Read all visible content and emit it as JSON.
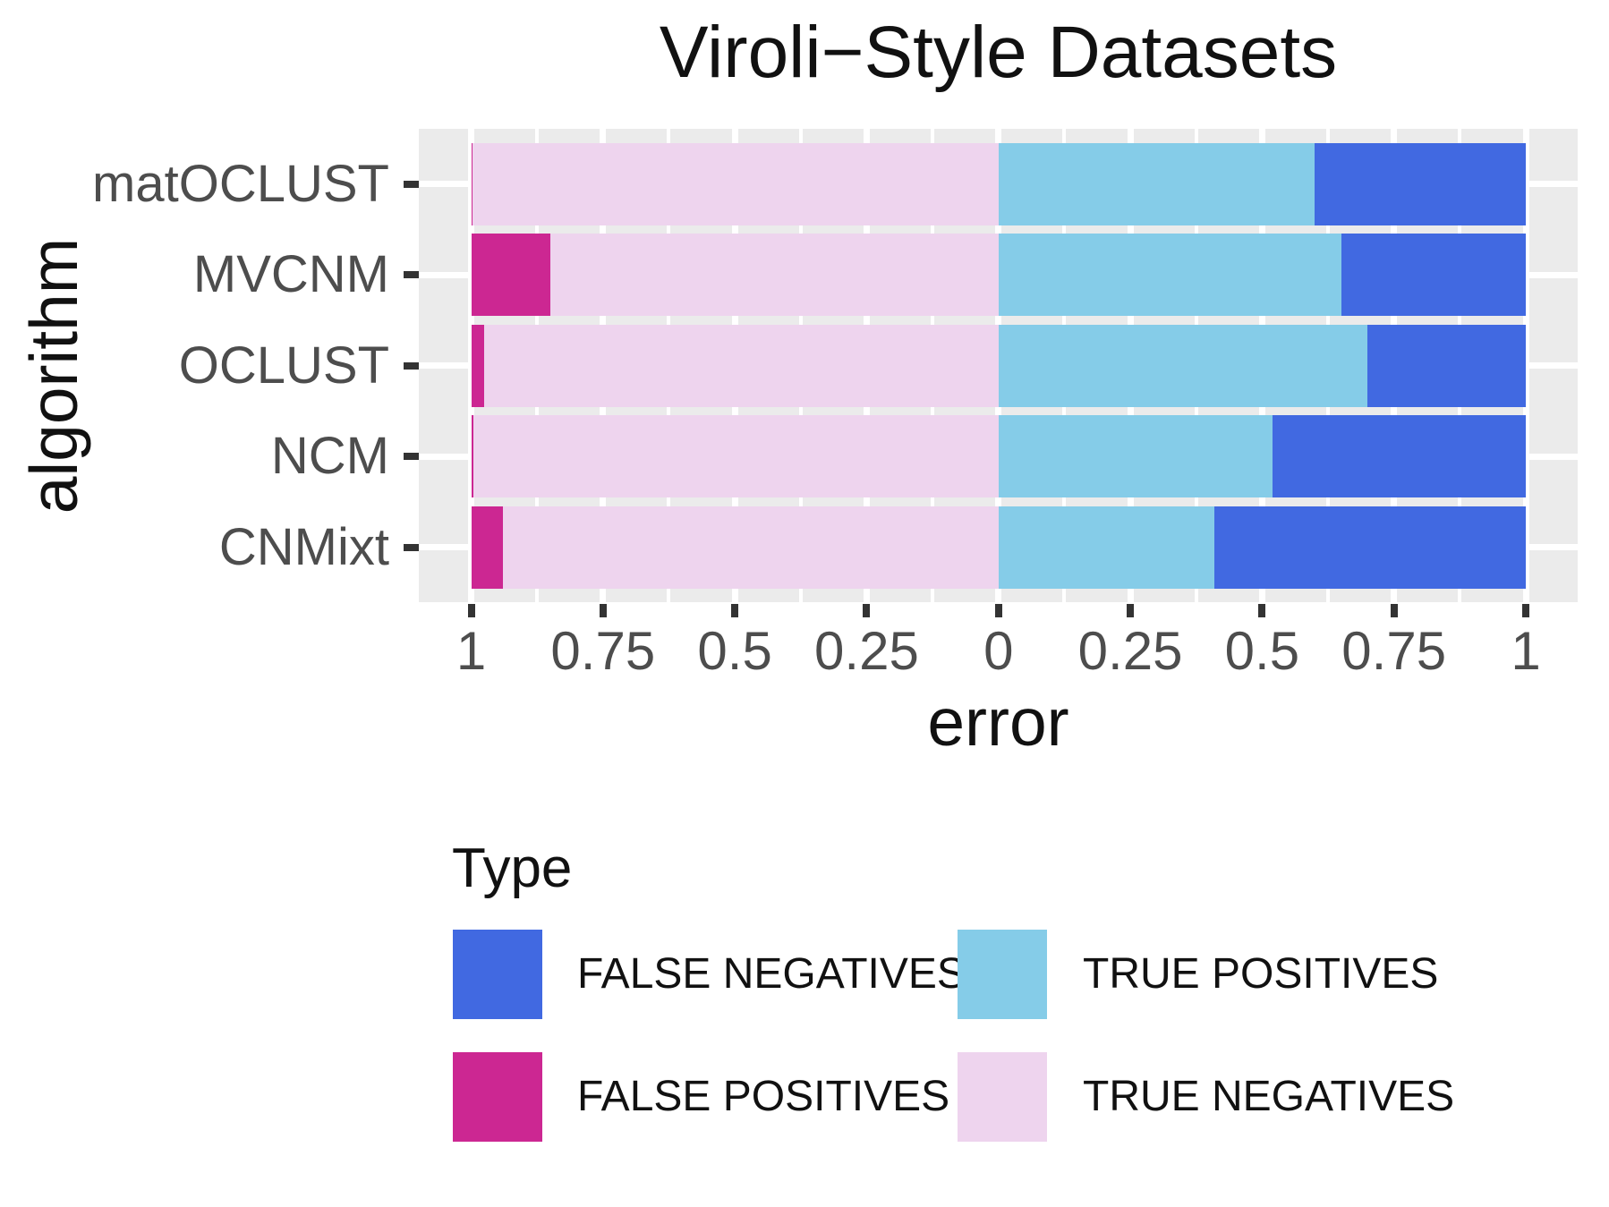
{
  "title": "Viroli−Style Datasets",
  "chart_data": {
    "type": "bar",
    "subtype": "diverging-stacked-horizontal",
    "title": "Viroli−Style Datasets",
    "xlabel": "error",
    "ylabel": "algorithm",
    "categories": [
      "matOCLUST",
      "MVCNM",
      "OCLUST",
      "NCM",
      "CNMixt"
    ],
    "series": [
      {
        "name": "FALSE POSITIVES",
        "side": "left",
        "color": "#CC2792",
        "values": [
          0.003,
          0.15,
          0.025,
          0.005,
          0.06
        ]
      },
      {
        "name": "TRUE NEGATIVES",
        "side": "left",
        "color": "#EED4EE",
        "values": [
          0.997,
          0.85,
          0.975,
          0.995,
          0.94
        ]
      },
      {
        "name": "TRUE POSITIVES",
        "side": "right",
        "color": "#85CCE8",
        "values": [
          0.6,
          0.65,
          0.7,
          0.52,
          0.41
        ]
      },
      {
        "name": "FALSE NEGATIVES",
        "side": "right",
        "color": "#4169E1",
        "values": [
          0.4,
          0.35,
          0.3,
          0.48,
          0.59
        ]
      }
    ],
    "x_ticks": [
      "1",
      "0.75",
      "0.5",
      "0.25",
      "0",
      "0.25",
      "0.5",
      "0.75",
      "1"
    ],
    "xlim": [
      -1,
      1
    ],
    "grid": "white major and minor vertical gridlines, white horizontal gridline per category, gray panel",
    "panel_background": "#EBEBEB",
    "tick_color": "#333333",
    "tick_label_color": "#4D4D4D",
    "legend_position": "bottom"
  },
  "legend": {
    "title": "Type",
    "entries": [
      {
        "label": "FALSE NEGATIVES",
        "color": "#4169E1"
      },
      {
        "label": "TRUE POSITIVES",
        "color": "#85CCE8"
      },
      {
        "label": "FALSE POSITIVES",
        "color": "#CC2792"
      },
      {
        "label": "TRUE NEGATIVES",
        "color": "#EED4EE"
      }
    ]
  }
}
